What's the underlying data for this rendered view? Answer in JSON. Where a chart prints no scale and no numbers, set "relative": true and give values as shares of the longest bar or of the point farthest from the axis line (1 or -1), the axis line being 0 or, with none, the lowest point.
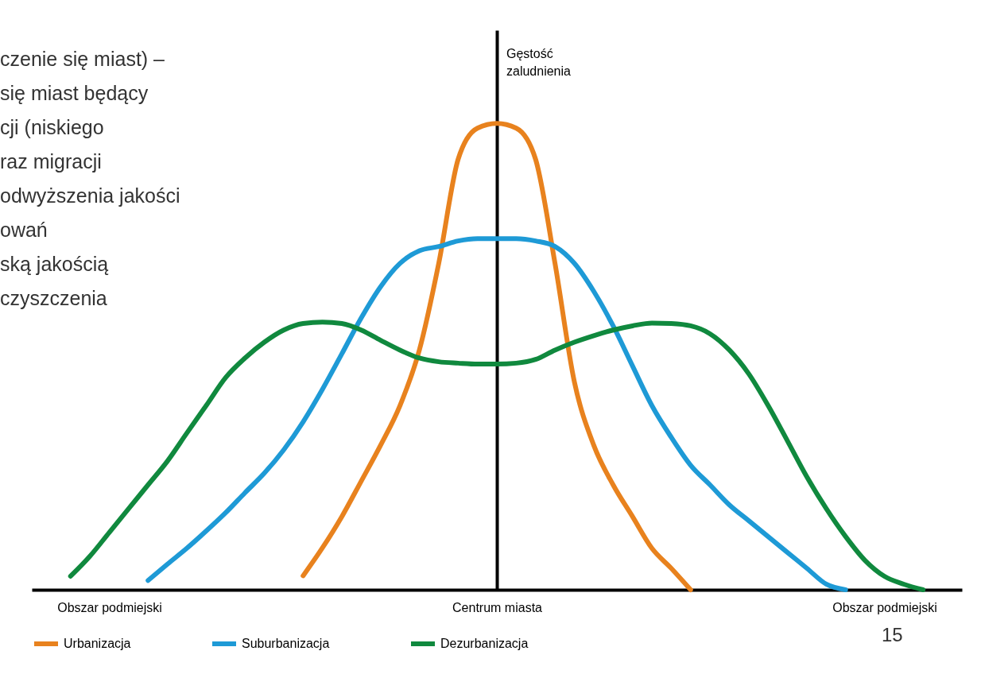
{
  "chart_data": {
    "type": "line",
    "relative": true,
    "ylabel": "Gęstość zaludnienia",
    "categories": [
      null,
      null,
      null,
      null,
      "Obszar podmiejski",
      null,
      null,
      null,
      null,
      null,
      null,
      null,
      null,
      null,
      null,
      null,
      null,
      null,
      null,
      null,
      null,
      null,
      null,
      null,
      "Centrum miasta",
      null,
      null,
      null,
      null,
      null,
      null,
      null,
      null,
      null,
      null,
      null,
      null,
      null,
      null,
      null,
      null,
      null,
      null,
      null,
      "Obszar podmiejski",
      null,
      null,
      null,
      null
    ],
    "series": [
      {
        "name": "Urbanizacja",
        "color": "#e8821e",
        "values": [
          null,
          null,
          null,
          null,
          null,
          null,
          null,
          null,
          null,
          null,
          null,
          null,
          null,
          null,
          0.03,
          0.09,
          0.157,
          0.233,
          0.31,
          0.395,
          0.514,
          0.7,
          0.923,
          0.99,
          1,
          0.99,
          0.923,
          0.7,
          0.446,
          0.31,
          0.225,
          0.157,
          0.089,
          0.046,
          0,
          null,
          null,
          null,
          null,
          null,
          null,
          null,
          null,
          null,
          null,
          null,
          null,
          null,
          null
        ]
      },
      {
        "name": "Suburbanizacja",
        "color": "#1e9ad6",
        "values": [
          null,
          null,
          null,
          null,
          null,
          null,
          0.02,
          0.055,
          0.089,
          0.126,
          0.165,
          0.208,
          0.25,
          0.3,
          0.36,
          0.43,
          0.506,
          0.583,
          0.65,
          0.7,
          0.727,
          0.736,
          0.748,
          0.753,
          0.753,
          0.753,
          0.748,
          0.736,
          0.7,
          0.64,
          0.566,
          0.48,
          0.395,
          0.327,
          0.267,
          0.225,
          0.182,
          0.148,
          0.114,
          0.08,
          0.046,
          0.012,
          0,
          null,
          null,
          null,
          null,
          null,
          null
        ]
      },
      {
        "name": "Dezurbanizacja",
        "color": "#10893e",
        "values": [
          null,
          null,
          0.029,
          0.072,
          0.123,
          0.174,
          0.225,
          0.276,
          0.336,
          0.395,
          0.455,
          0.497,
          0.531,
          0.557,
          0.571,
          0.574,
          0.571,
          0.557,
          0.535,
          0.514,
          0.497,
          0.489,
          0.486,
          0.484,
          0.484,
          0.486,
          0.494,
          0.514,
          0.531,
          0.545,
          0.557,
          0.566,
          0.572,
          0.571,
          0.566,
          0.549,
          0.514,
          0.463,
          0.395,
          0.319,
          0.242,
          0.174,
          0.114,
          0.063,
          0.029,
          0.012,
          0,
          null,
          null
        ]
      }
    ],
    "annotations": [
      "czenie się miast) –",
      "się miast będący",
      "cji (niskiego",
      "raz migracji",
      "odwyższenia jakości",
      "owań",
      "ską jakością",
      "czyszczenia",
      "15"
    ],
    "legend": "bottom",
    "marker": "none",
    "line_style": "solid"
  }
}
